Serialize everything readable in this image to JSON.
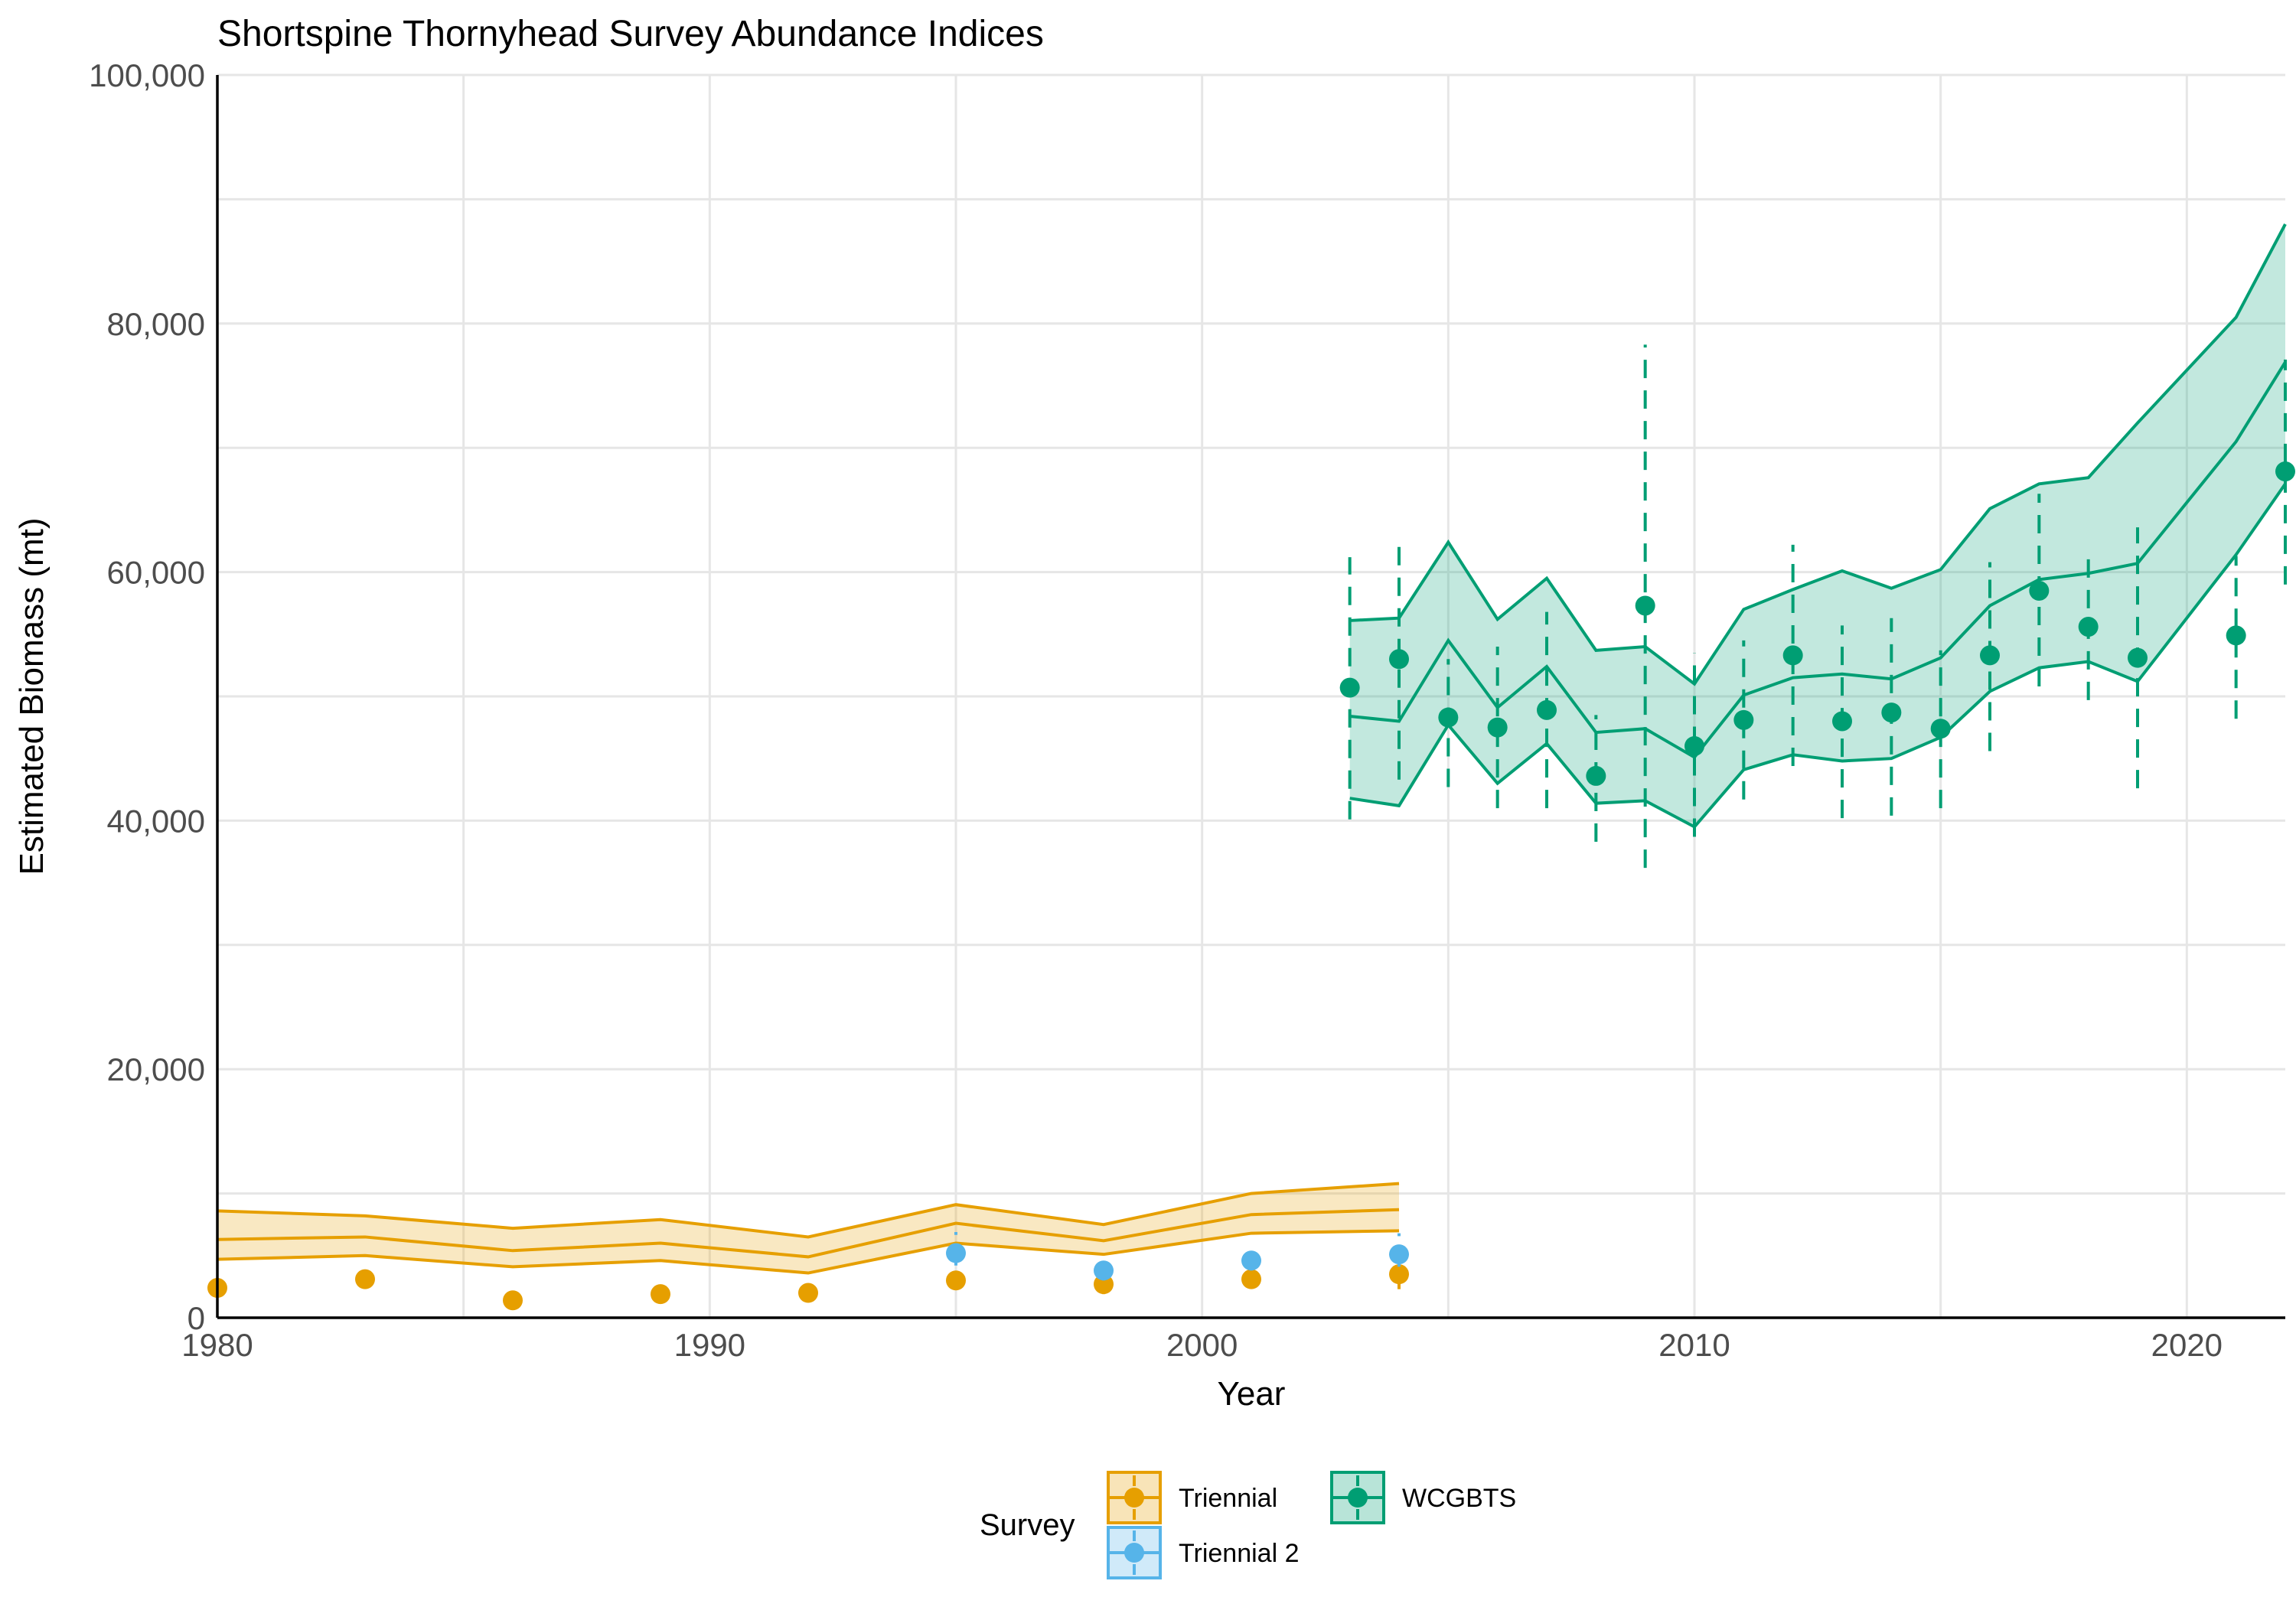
{
  "chart_data": {
    "type": "line",
    "title": "Shortspine Thornyhead Survey Abundance Indices",
    "xlabel": "Year",
    "ylabel": "Estimated Biomass (mt)",
    "xlim": [
      1980,
      2022
    ],
    "ylim": [
      0,
      100000
    ],
    "x_ticks": [
      1980,
      1990,
      2000,
      2010,
      2020
    ],
    "y_ticks": [
      0,
      20000,
      40000,
      60000,
      80000,
      100000
    ],
    "x_tick_labels": [
      "1980",
      "1990",
      "2000",
      "2010",
      "2020"
    ],
    "y_tick_labels": [
      "0",
      "20,000",
      "40,000",
      "60,000",
      "80,000",
      "100,000"
    ],
    "grid": true,
    "legend": {
      "title": "Survey",
      "position": "bottom",
      "entries": [
        "Triennial",
        "Triennial 2",
        "WCGBTS"
      ]
    },
    "series": [
      {
        "name": "Triennial",
        "color": "#E69F00",
        "points": [
          {
            "x": 1980,
            "y": 2400,
            "lo": 2000,
            "hi": 2800
          },
          {
            "x": 1983,
            "y": 3100,
            "lo": 2700,
            "hi": 3500
          },
          {
            "x": 1986,
            "y": 1400,
            "lo": 1100,
            "hi": 1700
          },
          {
            "x": 1989,
            "y": 1900,
            "lo": 1600,
            "hi": 2200
          },
          {
            "x": 1992,
            "y": 2000,
            "lo": 1700,
            "hi": 2300
          },
          {
            "x": 1995,
            "y": 3000,
            "lo": 2400,
            "hi": 3600
          },
          {
            "x": 1998,
            "y": 2700,
            "lo": 1900,
            "hi": 3300
          },
          {
            "x": 2001,
            "y": 3100,
            "lo": 2600,
            "hi": 3500
          },
          {
            "x": 2004,
            "y": 3500,
            "lo": 2300,
            "hi": 4600
          }
        ],
        "fit": [
          {
            "x": 1980,
            "mid": 6300,
            "lo": 4700,
            "hi": 8600
          },
          {
            "x": 1983,
            "mid": 6500,
            "lo": 5000,
            "hi": 8200
          },
          {
            "x": 1986,
            "mid": 5400,
            "lo": 4100,
            "hi": 7200
          },
          {
            "x": 1989,
            "mid": 6000,
            "lo": 4600,
            "hi": 7900
          },
          {
            "x": 1992,
            "mid": 4900,
            "lo": 3600,
            "hi": 6500
          },
          {
            "x": 1995,
            "mid": 7600,
            "lo": 6000,
            "hi": 9100
          },
          {
            "x": 1998,
            "mid": 6200,
            "lo": 5100,
            "hi": 7500
          },
          {
            "x": 2001,
            "mid": 8300,
            "lo": 6800,
            "hi": 10000
          },
          {
            "x": 2004,
            "mid": 8700,
            "lo": 7000,
            "hi": 10800
          }
        ]
      },
      {
        "name": "Triennial 2",
        "color": "#56B4E9",
        "points": [
          {
            "x": 1995,
            "y": 5200,
            "lo": 4200,
            "hi": 6900
          },
          {
            "x": 1998,
            "y": 3800,
            "lo": 3000,
            "hi": 4600
          },
          {
            "x": 2001,
            "y": 4600,
            "lo": 3800,
            "hi": 5400
          },
          {
            "x": 2004,
            "y": 5100,
            "lo": 4100,
            "hi": 6800
          }
        ]
      },
      {
        "name": "WCGBTS",
        "color": "#009E73",
        "points": [
          {
            "x": 2003,
            "y": 50700,
            "lo": 40100,
            "hi": 61200
          },
          {
            "x": 2004,
            "y": 53000,
            "lo": 43300,
            "hi": 62700
          },
          {
            "x": 2005,
            "y": 48300,
            "lo": 42700,
            "hi": 53000
          },
          {
            "x": 2006,
            "y": 47500,
            "lo": 41000,
            "hi": 54000
          },
          {
            "x": 2007,
            "y": 48900,
            "lo": 41000,
            "hi": 56800
          },
          {
            "x": 2008,
            "y": 43600,
            "lo": 38300,
            "hi": 48500
          },
          {
            "x": 2009,
            "y": 57300,
            "lo": 36200,
            "hi": 78300
          },
          {
            "x": 2010,
            "y": 46000,
            "lo": 38700,
            "hi": 53500
          },
          {
            "x": 2011,
            "y": 48100,
            "lo": 41700,
            "hi": 54500
          },
          {
            "x": 2012,
            "y": 53300,
            "lo": 44400,
            "hi": 62200
          },
          {
            "x": 2013,
            "y": 48000,
            "lo": 40200,
            "hi": 55700
          },
          {
            "x": 2014,
            "y": 48700,
            "lo": 40400,
            "hi": 56300
          },
          {
            "x": 2015,
            "y": 47400,
            "lo": 41000,
            "hi": 53700
          },
          {
            "x": 2016,
            "y": 53300,
            "lo": 45600,
            "hi": 60800
          },
          {
            "x": 2017,
            "y": 58500,
            "lo": 50800,
            "hi": 66300
          },
          {
            "x": 2018,
            "y": 55600,
            "lo": 49700,
            "hi": 61400
          },
          {
            "x": 2019,
            "y": 53100,
            "lo": 42600,
            "hi": 63600
          },
          {
            "x": 2021,
            "y": 54900,
            "lo": 48200,
            "hi": 61300
          },
          {
            "x": 2022,
            "y": 68100,
            "lo": 59000,
            "hi": 77100
          }
        ],
        "fit": [
          {
            "x": 2003,
            "mid": 48400,
            "lo": 41800,
            "hi": 56100
          },
          {
            "x": 2004,
            "mid": 48000,
            "lo": 41200,
            "hi": 56300
          },
          {
            "x": 2005,
            "mid": 54500,
            "lo": 47700,
            "hi": 62400
          },
          {
            "x": 2006,
            "mid": 49100,
            "lo": 43000,
            "hi": 56200
          },
          {
            "x": 2007,
            "mid": 52400,
            "lo": 46200,
            "hi": 59500
          },
          {
            "x": 2008,
            "mid": 47100,
            "lo": 41400,
            "hi": 53700
          },
          {
            "x": 2009,
            "mid": 47400,
            "lo": 41600,
            "hi": 54000
          },
          {
            "x": 2010,
            "mid": 45100,
            "lo": 39500,
            "hi": 51000
          },
          {
            "x": 2011,
            "mid": 50100,
            "lo": 44100,
            "hi": 57000
          },
          {
            "x": 2012,
            "mid": 51500,
            "lo": 45300,
            "hi": 58600
          },
          {
            "x": 2013,
            "mid": 51800,
            "lo": 44800,
            "hi": 60100
          },
          {
            "x": 2014,
            "mid": 51400,
            "lo": 45000,
            "hi": 58700
          },
          {
            "x": 2015,
            "mid": 53100,
            "lo": 46700,
            "hi": 60200
          },
          {
            "x": 2016,
            "mid": 57300,
            "lo": 50400,
            "hi": 65100
          },
          {
            "x": 2017,
            "mid": 59400,
            "lo": 52300,
            "hi": 67100
          },
          {
            "x": 2018,
            "mid": 59900,
            "lo": 52800,
            "hi": 67600
          },
          {
            "x": 2019,
            "mid": 60700,
            "lo": 51200,
            "hi": 72000
          },
          {
            "x": 2021,
            "mid": 70500,
            "lo": 61400,
            "hi": 80500
          },
          {
            "x": 2022,
            "mid": 76900,
            "lo": 67100,
            "hi": 88000
          }
        ]
      }
    ]
  }
}
